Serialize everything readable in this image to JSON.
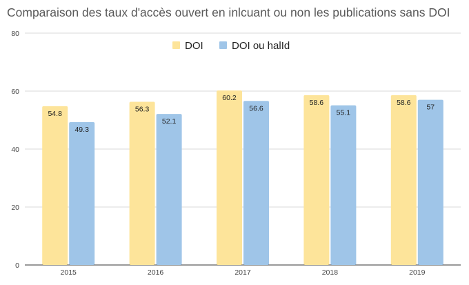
{
  "chart_data": {
    "type": "bar",
    "title": "Comparaison des taux d'accès ouvert en inlcuant ou non les publications sans DOI",
    "xlabel": "",
    "ylabel": "",
    "categories": [
      "2015",
      "2016",
      "2017",
      "2018",
      "2019"
    ],
    "series": [
      {
        "name": "DOI",
        "color": "#fde49a",
        "values": [
          54.8,
          56.3,
          60.2,
          58.6,
          58.6
        ],
        "labels": [
          "54.8",
          "56.3",
          "60.2",
          "58.6",
          "58.6"
        ]
      },
      {
        "name": "DOI ou halId",
        "color": "#9fc5e8",
        "values": [
          49.3,
          52.1,
          56.6,
          55.1,
          57
        ],
        "labels": [
          "49.3",
          "52.1",
          "56.6",
          "55.1",
          "57"
        ]
      }
    ],
    "ylim": [
      0,
      80
    ],
    "yticks": [
      0,
      20,
      40,
      60,
      80
    ],
    "grid": true,
    "legend_position": "top-center"
  }
}
